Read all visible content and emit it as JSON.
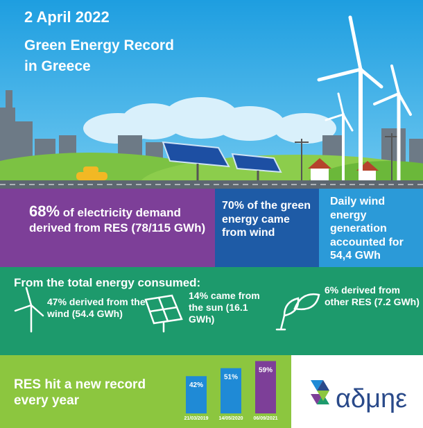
{
  "header": {
    "date": "2 April 2022",
    "title_lines": [
      "Green Energy Record",
      "in Greece"
    ]
  },
  "stats": [
    {
      "highlight": "68%",
      "text": "of electricity demand derived from RES (78/115 GWh)"
    },
    {
      "text": "70% of the green energy came from wind"
    },
    {
      "text": "Daily wind energy generation accounted for 54,4 GWh"
    }
  ],
  "breakdown": {
    "heading": "From the total energy consumed:",
    "items": [
      "47% derived from the wind (54.4 GWh)",
      "14% came from the sun (16.1 GWh)",
      "6% derived from other RES (7.2 GWh)"
    ]
  },
  "record": {
    "text": "RES hit a new record every year"
  },
  "chart_data": {
    "type": "bar",
    "categories": [
      "21/03/2019",
      "14/05/2020",
      "06/09/2021"
    ],
    "values": [
      42,
      51,
      59
    ],
    "value_labels": [
      "42%",
      "51%",
      "59%"
    ],
    "colors": [
      "#1f8ad6",
      "#1f8ad6",
      "#7d3f98"
    ]
  },
  "logo": {
    "text": "αδμηε"
  }
}
